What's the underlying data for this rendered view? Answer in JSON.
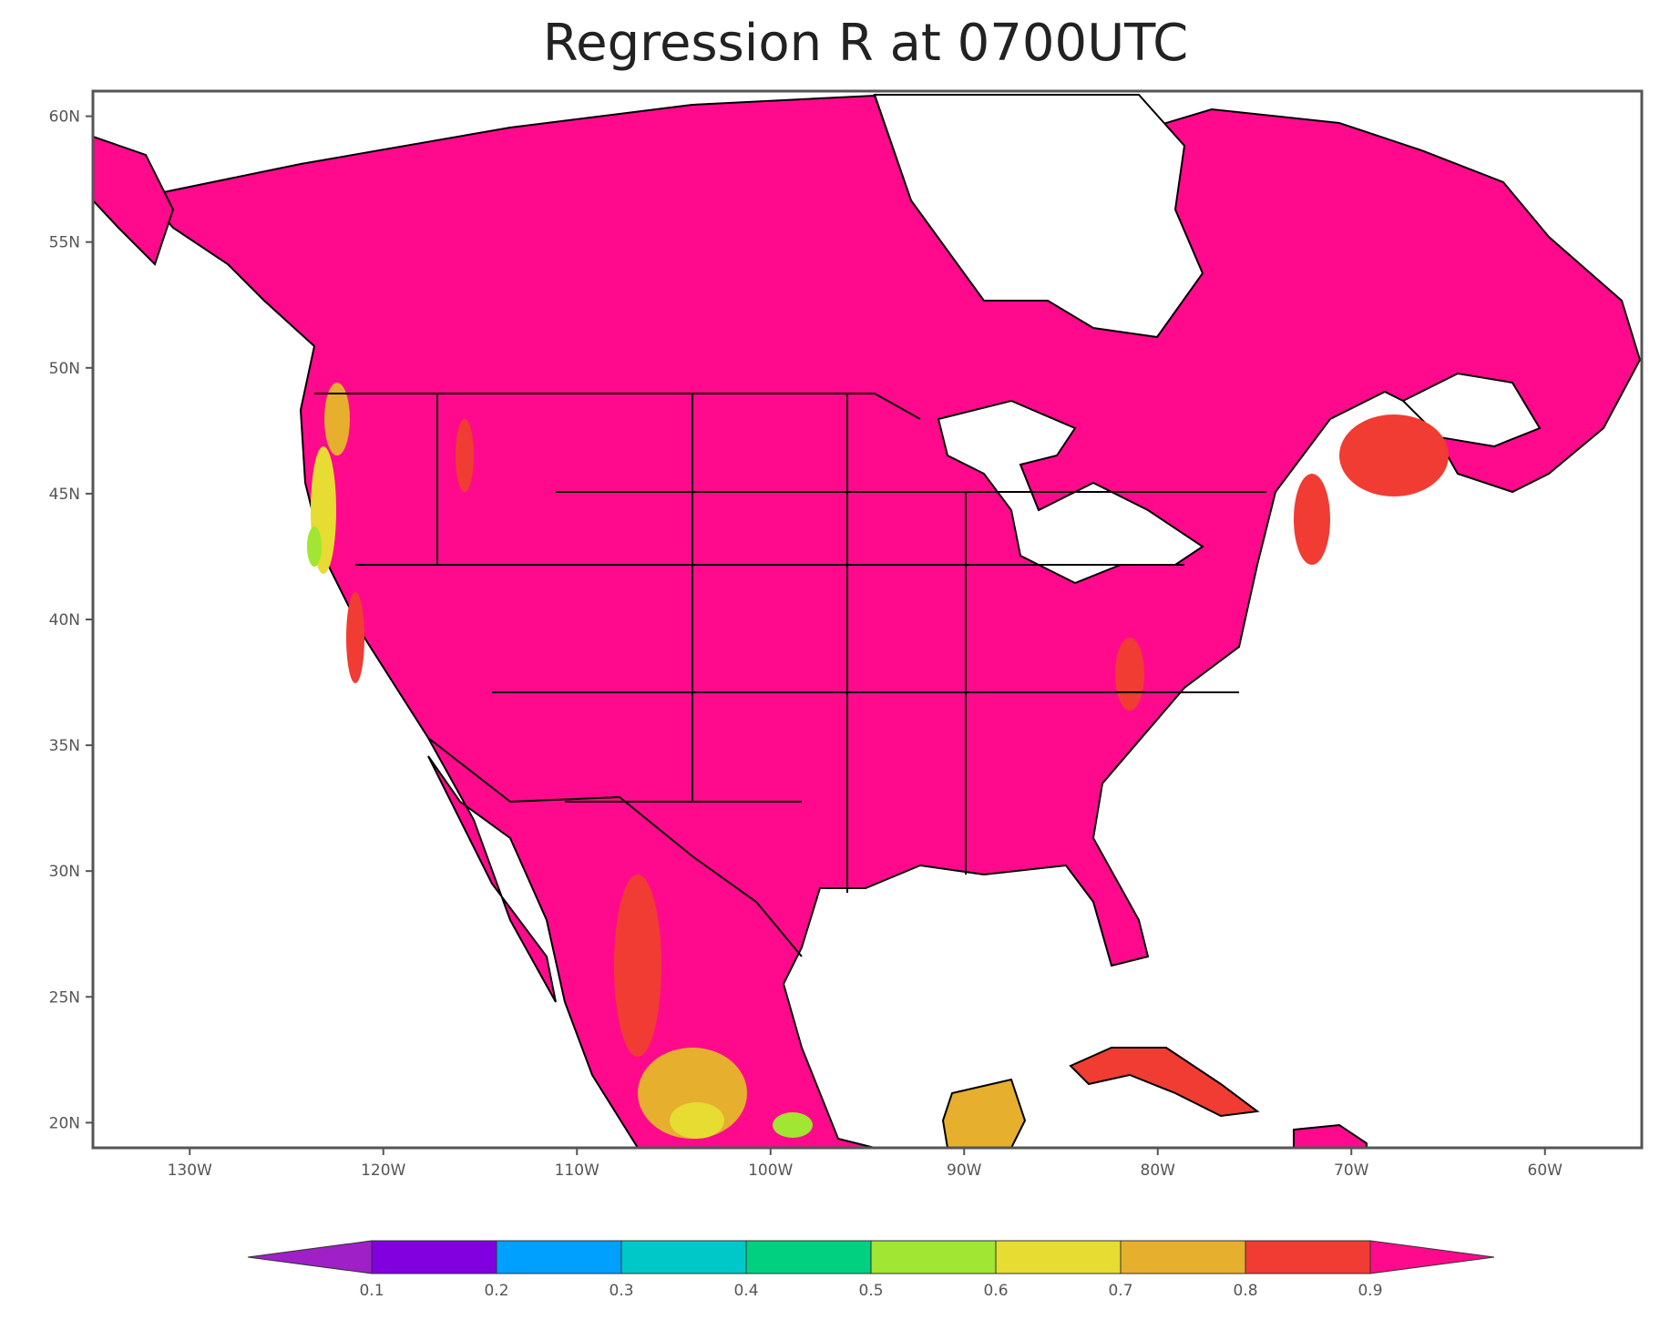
{
  "title": "Regression R at 0700UTC",
  "map": {
    "lat_ticks": [
      {
        "value": 60,
        "label": "60N"
      },
      {
        "value": 55,
        "label": "55N"
      },
      {
        "value": 50,
        "label": "50N"
      },
      {
        "value": 45,
        "label": "45N"
      },
      {
        "value": 40,
        "label": "40N"
      },
      {
        "value": 35,
        "label": "35N"
      },
      {
        "value": 30,
        "label": "30N"
      },
      {
        "value": 25,
        "label": "25N"
      },
      {
        "value": 20,
        "label": "20N"
      }
    ],
    "lon_ticks": [
      {
        "value": -130,
        "label": "130W"
      },
      {
        "value": -120,
        "label": "120W"
      },
      {
        "value": -110,
        "label": "110W"
      },
      {
        "value": -100,
        "label": "100W"
      },
      {
        "value": -90,
        "label": "90W"
      },
      {
        "value": -80,
        "label": "80W"
      },
      {
        "value": -70,
        "label": "70W"
      },
      {
        "value": -60,
        "label": "60W"
      }
    ],
    "lon_range": [
      -135,
      -55
    ],
    "lat_range": [
      19,
      61
    ],
    "dominant_color": "#ff0a8c",
    "land_outline_color": "#000000",
    "background_color": "#ffffff"
  },
  "colorbar": {
    "levels": [
      "0.1",
      "0.2",
      "0.3",
      "0.4",
      "0.5",
      "0.6",
      "0.7",
      "0.8",
      "0.9"
    ],
    "colors": [
      "#a020c8",
      "#8000e0",
      "#00a0ff",
      "#00c8c8",
      "#00d080",
      "#a0e632",
      "#e6dc32",
      "#e6af2d",
      "#f03c32",
      "#ff0a8c"
    ]
  }
}
